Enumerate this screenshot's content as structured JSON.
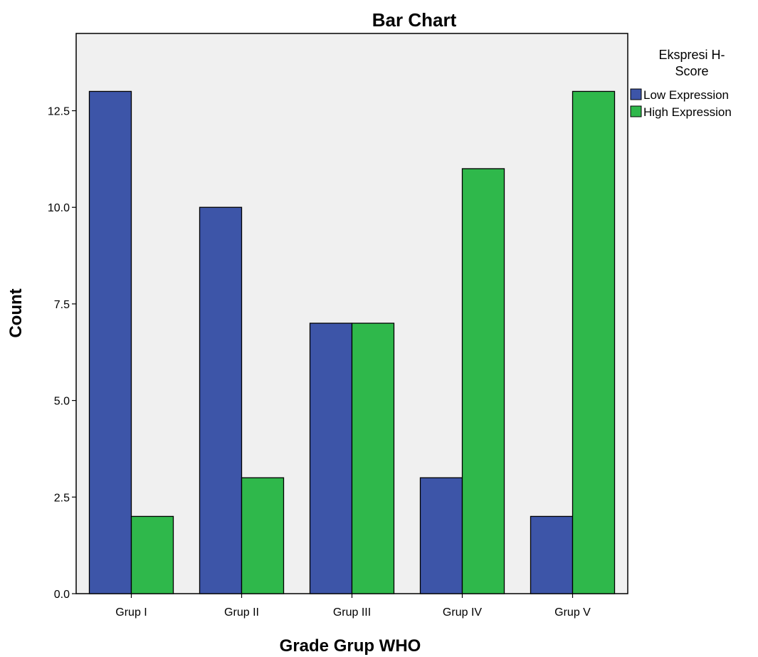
{
  "chart_data": {
    "type": "bar",
    "title": "Bar Chart",
    "xlabel": "Grade Grup WHO",
    "ylabel": "Count",
    "categories": [
      "Grup I",
      "Grup II",
      "Grup III",
      "Grup IV",
      "Grup V"
    ],
    "series": [
      {
        "name": "Low Expression",
        "values": [
          13,
          10,
          7,
          3,
          2
        ],
        "color": "#3d55a8"
      },
      {
        "name": "High Expression",
        "values": [
          2,
          3,
          7,
          11,
          13
        ],
        "color": "#2fb84b"
      }
    ],
    "ylim": [
      0,
      14.5
    ],
    "yticks": [
      0,
      2.5,
      5,
      7.5,
      10,
      12.5
    ],
    "ytick_labels": [
      "0.0",
      "2.5",
      "5.0",
      "7.5",
      "10.0",
      "12.5"
    ],
    "legend": {
      "title_lines": [
        "Ekspresi H-",
        "Score"
      ],
      "position": "right"
    },
    "grid": false,
    "plot_background": "#f0f0f0"
  }
}
